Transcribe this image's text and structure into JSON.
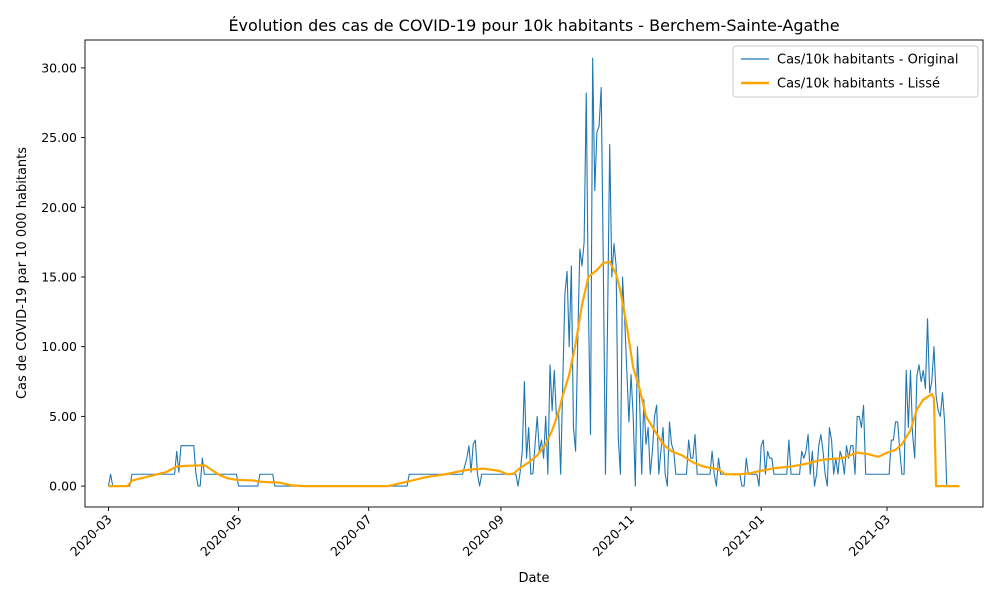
{
  "chart_data": {
    "type": "line",
    "title": "Évolution des cas de COVID-19 pour 10k habitants - Berchem-Sainte-Agathe",
    "xlabel": "Date",
    "ylabel": "Cas de COVID-19 par 10 000 habitants",
    "xlim": [
      "2020-02-19",
      "2021-04-15"
    ],
    "ylim": [
      -1.5,
      32.0
    ],
    "x_ticks": [
      "2020-03",
      "2020-05",
      "2020-07",
      "2020-09",
      "2020-11",
      "2021-01",
      "2021-03"
    ],
    "y_ticks": [
      "0.00",
      "5.00",
      "10.00",
      "15.00",
      "20.00",
      "25.00",
      "30.00"
    ],
    "grid": false,
    "legend_position": "top-right",
    "series": [
      {
        "name": "Cas/10k habitants - Original",
        "color": "#1f77b4",
        "points": [
          [
            "2020-03-01",
            0
          ],
          [
            "2020-03-02",
            0.85
          ],
          [
            "2020-03-03",
            0
          ],
          [
            "2020-03-11",
            0
          ],
          [
            "2020-03-12",
            0.85
          ],
          [
            "2020-04-01",
            0.85
          ],
          [
            "2020-04-02",
            2.5
          ],
          [
            "2020-04-03",
            1.0
          ],
          [
            "2020-04-04",
            2.9
          ],
          [
            "2020-04-10",
            2.9
          ],
          [
            "2020-04-11",
            0.9
          ],
          [
            "2020-04-12",
            0
          ],
          [
            "2020-04-13",
            0
          ],
          [
            "2020-04-14",
            2.0
          ],
          [
            "2020-04-15",
            0.85
          ],
          [
            "2020-04-30",
            0.85
          ],
          [
            "2020-05-01",
            0
          ],
          [
            "2020-05-10",
            0
          ],
          [
            "2020-05-11",
            0.85
          ],
          [
            "2020-05-17",
            0.85
          ],
          [
            "2020-05-18",
            0
          ],
          [
            "2020-07-19",
            0
          ],
          [
            "2020-07-20",
            0.85
          ],
          [
            "2020-08-14",
            0.85
          ],
          [
            "2020-08-16",
            2.0
          ],
          [
            "2020-08-17",
            2.9
          ],
          [
            "2020-08-18",
            1.0
          ],
          [
            "2020-08-19",
            3.0
          ],
          [
            "2020-08-20",
            3.3
          ],
          [
            "2020-08-21",
            0.85
          ],
          [
            "2020-08-22",
            0
          ],
          [
            "2020-08-23",
            0.85
          ],
          [
            "2020-09-08",
            0.85
          ],
          [
            "2020-09-09",
            0
          ],
          [
            "2020-09-10",
            1.0
          ],
          [
            "2020-09-11",
            2.5
          ],
          [
            "2020-09-12",
            7.5
          ],
          [
            "2020-09-13",
            2.0
          ],
          [
            "2020-09-14",
            4.2
          ],
          [
            "2020-09-15",
            0.85
          ],
          [
            "2020-09-16",
            0.9
          ],
          [
            "2020-09-17",
            3.0
          ],
          [
            "2020-09-18",
            5.0
          ],
          [
            "2020-09-19",
            2.5
          ],
          [
            "2020-09-20",
            3.3
          ],
          [
            "2020-09-21",
            2.0
          ],
          [
            "2020-09-22",
            5.0
          ],
          [
            "2020-09-23",
            0.85
          ],
          [
            "2020-09-24",
            8.7
          ],
          [
            "2020-09-25",
            5.4
          ],
          [
            "2020-09-26",
            8.3
          ],
          [
            "2020-09-27",
            5.0
          ],
          [
            "2020-09-28",
            5.4
          ],
          [
            "2020-09-29",
            0.85
          ],
          [
            "2020-09-30",
            7.5
          ],
          [
            "2020-10-01",
            13.8
          ],
          [
            "2020-10-02",
            15.4
          ],
          [
            "2020-10-03",
            10.0
          ],
          [
            "2020-10-04",
            15.8
          ],
          [
            "2020-10-05",
            4.2
          ],
          [
            "2020-10-06",
            2.5
          ],
          [
            "2020-10-07",
            10.4
          ],
          [
            "2020-10-08",
            17.0
          ],
          [
            "2020-10-09",
            15.8
          ],
          [
            "2020-10-10",
            17.5
          ],
          [
            "2020-10-11",
            28.2
          ],
          [
            "2020-10-12",
            13.0
          ],
          [
            "2020-10-13",
            3.7
          ],
          [
            "2020-10-14",
            30.7
          ],
          [
            "2020-10-15",
            21.2
          ],
          [
            "2020-10-16",
            25.4
          ],
          [
            "2020-10-17",
            25.8
          ],
          [
            "2020-10-18",
            28.6
          ],
          [
            "2020-10-19",
            15.8
          ],
          [
            "2020-10-20",
            0.85
          ],
          [
            "2020-10-21",
            12.0
          ],
          [
            "2020-10-22",
            24.5
          ],
          [
            "2020-10-23",
            15.0
          ],
          [
            "2020-10-24",
            17.4
          ],
          [
            "2020-10-25",
            15.8
          ],
          [
            "2020-10-26",
            3.5
          ],
          [
            "2020-10-27",
            0.85
          ],
          [
            "2020-10-28",
            15.0
          ],
          [
            "2020-10-29",
            12.0
          ],
          [
            "2020-10-30",
            8.3
          ],
          [
            "2020-10-31",
            4.6
          ],
          [
            "2020-11-01",
            8.0
          ],
          [
            "2020-11-02",
            5.0
          ],
          [
            "2020-11-03",
            0
          ],
          [
            "2020-11-04",
            10.0
          ],
          [
            "2020-11-05",
            6.2
          ],
          [
            "2020-11-06",
            0.85
          ],
          [
            "2020-11-07",
            6.2
          ],
          [
            "2020-11-08",
            3.0
          ],
          [
            "2020-11-09",
            4.2
          ],
          [
            "2020-11-10",
            0.85
          ],
          [
            "2020-11-11",
            2.5
          ],
          [
            "2020-11-12",
            5.0
          ],
          [
            "2020-11-13",
            5.8
          ],
          [
            "2020-11-14",
            0.85
          ],
          [
            "2020-11-15",
            2.5
          ],
          [
            "2020-11-16",
            4.2
          ],
          [
            "2020-11-17",
            0.85
          ],
          [
            "2020-11-18",
            0
          ],
          [
            "2020-11-19",
            4.6
          ],
          [
            "2020-11-20",
            3.0
          ],
          [
            "2020-11-21",
            2.5
          ],
          [
            "2020-11-22",
            0.85
          ],
          [
            "2020-11-27",
            0.85
          ],
          [
            "2020-11-28",
            3.3
          ],
          [
            "2020-11-29",
            2.0
          ],
          [
            "2020-11-30",
            2.0
          ],
          [
            "2020-12-01",
            3.7
          ],
          [
            "2020-12-02",
            0.85
          ],
          [
            "2020-12-08",
            0.85
          ],
          [
            "2020-12-09",
            2.5
          ],
          [
            "2020-12-10",
            0.85
          ],
          [
            "2020-12-11",
            0
          ],
          [
            "2020-12-12",
            2.0
          ],
          [
            "2020-12-13",
            0.85
          ],
          [
            "2020-12-22",
            0.85
          ],
          [
            "2020-12-23",
            0
          ],
          [
            "2020-12-24",
            0
          ],
          [
            "2020-12-25",
            2.0
          ],
          [
            "2020-12-26",
            0.85
          ],
          [
            "2020-12-30",
            0.85
          ],
          [
            "2020-12-31",
            0
          ],
          [
            "2021-01-01",
            2.9
          ],
          [
            "2021-01-02",
            3.3
          ],
          [
            "2021-01-03",
            0.85
          ],
          [
            "2021-01-04",
            2.5
          ],
          [
            "2021-01-05",
            2.0
          ],
          [
            "2021-01-06",
            2.0
          ],
          [
            "2021-01-07",
            0.85
          ],
          [
            "2021-01-13",
            0.85
          ],
          [
            "2021-01-14",
            3.3
          ],
          [
            "2021-01-15",
            0.85
          ],
          [
            "2021-01-19",
            0.85
          ],
          [
            "2021-01-20",
            2.5
          ],
          [
            "2021-01-21",
            2.0
          ],
          [
            "2021-01-22",
            2.5
          ],
          [
            "2021-01-23",
            3.7
          ],
          [
            "2021-01-24",
            0.85
          ],
          [
            "2021-01-25",
            2.5
          ],
          [
            "2021-01-26",
            0
          ],
          [
            "2021-01-27",
            0.85
          ],
          [
            "2021-01-28",
            2.9
          ],
          [
            "2021-01-29",
            3.7
          ],
          [
            "2021-01-30",
            2.5
          ],
          [
            "2021-01-31",
            0.85
          ],
          [
            "2021-02-01",
            0
          ],
          [
            "2021-02-02",
            4.2
          ],
          [
            "2021-02-03",
            3.3
          ],
          [
            "2021-02-04",
            0.85
          ],
          [
            "2021-02-05",
            2.0
          ],
          [
            "2021-02-06",
            0.85
          ],
          [
            "2021-02-07",
            2.5
          ],
          [
            "2021-02-08",
            2.0
          ],
          [
            "2021-02-09",
            0.85
          ],
          [
            "2021-02-10",
            2.9
          ],
          [
            "2021-02-11",
            2.0
          ],
          [
            "2021-02-12",
            2.9
          ],
          [
            "2021-02-13",
            2.9
          ],
          [
            "2021-02-14",
            0.85
          ],
          [
            "2021-02-15",
            5.0
          ],
          [
            "2021-02-16",
            5.0
          ],
          [
            "2021-02-17",
            4.2
          ],
          [
            "2021-02-18",
            5.8
          ],
          [
            "2021-02-19",
            0.85
          ],
          [
            "2021-03-02",
            0.85
          ],
          [
            "2021-03-03",
            3.3
          ],
          [
            "2021-03-04",
            3.3
          ],
          [
            "2021-03-05",
            4.6
          ],
          [
            "2021-03-06",
            4.6
          ],
          [
            "2021-03-07",
            2.5
          ],
          [
            "2021-03-08",
            0.85
          ],
          [
            "2021-03-09",
            0.85
          ],
          [
            "2021-03-10",
            8.3
          ],
          [
            "2021-03-11",
            4.2
          ],
          [
            "2021-03-12",
            8.3
          ],
          [
            "2021-03-13",
            3.7
          ],
          [
            "2021-03-14",
            2.0
          ],
          [
            "2021-03-15",
            7.9
          ],
          [
            "2021-03-16",
            8.7
          ],
          [
            "2021-03-17",
            7.5
          ],
          [
            "2021-03-18",
            8.3
          ],
          [
            "2021-03-19",
            7.0
          ],
          [
            "2021-03-20",
            12.0
          ],
          [
            "2021-03-21",
            6.7
          ],
          [
            "2021-03-22",
            7.5
          ],
          [
            "2021-03-23",
            10.0
          ],
          [
            "2021-03-24",
            6.5
          ],
          [
            "2021-03-25",
            5.4
          ],
          [
            "2021-03-26",
            5.0
          ],
          [
            "2021-03-27",
            6.7
          ],
          [
            "2021-03-28",
            4.6
          ],
          [
            "2021-03-29",
            0
          ]
        ]
      },
      {
        "name": "Cas/10k habitants - Lissé",
        "color": "#ffa500",
        "points": [
          [
            "2020-03-01",
            0
          ],
          [
            "2020-03-10",
            0
          ],
          [
            "2020-03-12",
            0.4
          ],
          [
            "2020-03-20",
            0.7
          ],
          [
            "2020-03-28",
            1.0
          ],
          [
            "2020-04-02",
            1.4
          ],
          [
            "2020-04-06",
            1.45
          ],
          [
            "2020-04-15",
            1.5
          ],
          [
            "2020-04-18",
            1.2
          ],
          [
            "2020-04-22",
            0.8
          ],
          [
            "2020-04-26",
            0.55
          ],
          [
            "2020-04-30",
            0.45
          ],
          [
            "2020-05-08",
            0.4
          ],
          [
            "2020-05-12",
            0.3
          ],
          [
            "2020-05-20",
            0.25
          ],
          [
            "2020-05-26",
            0.05
          ],
          [
            "2020-06-01",
            0
          ],
          [
            "2020-07-10",
            0
          ],
          [
            "2020-07-20",
            0.35
          ],
          [
            "2020-07-28",
            0.65
          ],
          [
            "2020-08-06",
            0.85
          ],
          [
            "2020-08-14",
            1.1
          ],
          [
            "2020-08-18",
            1.2
          ],
          [
            "2020-08-24",
            1.25
          ],
          [
            "2020-08-31",
            1.1
          ],
          [
            "2020-09-04",
            0.85
          ],
          [
            "2020-09-07",
            0.9
          ],
          [
            "2020-09-10",
            1.3
          ],
          [
            "2020-09-14",
            1.7
          ],
          [
            "2020-09-18",
            2.2
          ],
          [
            "2020-09-22",
            3.0
          ],
          [
            "2020-09-25",
            4.0
          ],
          [
            "2020-09-28",
            5.3
          ],
          [
            "2020-09-30",
            6.5
          ],
          [
            "2020-10-03",
            8.0
          ],
          [
            "2020-10-06",
            10.2
          ],
          [
            "2020-10-09",
            13.0
          ],
          [
            "2020-10-12",
            15.0
          ],
          [
            "2020-10-16",
            15.5
          ],
          [
            "2020-10-19",
            16.0
          ],
          [
            "2020-10-22",
            16.1
          ],
          [
            "2020-10-25",
            15.2
          ],
          [
            "2020-10-27",
            14.0
          ],
          [
            "2020-10-30",
            11.5
          ],
          [
            "2020-11-02",
            8.5
          ],
          [
            "2020-11-05",
            7.0
          ],
          [
            "2020-11-08",
            5.0
          ],
          [
            "2020-11-12",
            4.0
          ],
          [
            "2020-11-16",
            3.0
          ],
          [
            "2020-11-20",
            2.5
          ],
          [
            "2020-11-25",
            2.2
          ],
          [
            "2020-11-30",
            1.7
          ],
          [
            "2020-12-05",
            1.4
          ],
          [
            "2020-12-12",
            1.2
          ],
          [
            "2020-12-15",
            0.85
          ],
          [
            "2020-12-22",
            0.85
          ],
          [
            "2020-12-26",
            0.9
          ],
          [
            "2021-01-01",
            1.1
          ],
          [
            "2021-01-08",
            1.3
          ],
          [
            "2021-01-15",
            1.4
          ],
          [
            "2021-01-22",
            1.6
          ],
          [
            "2021-01-30",
            1.9
          ],
          [
            "2021-02-08",
            2.0
          ],
          [
            "2021-02-15",
            2.4
          ],
          [
            "2021-02-20",
            2.3
          ],
          [
            "2021-02-25",
            2.1
          ],
          [
            "2021-03-01",
            2.4
          ],
          [
            "2021-03-05",
            2.6
          ],
          [
            "2021-03-08",
            3.0
          ],
          [
            "2021-03-12",
            4.0
          ],
          [
            "2021-03-15",
            5.5
          ],
          [
            "2021-03-18",
            6.2
          ],
          [
            "2021-03-22",
            6.6
          ],
          [
            "2021-03-23",
            6.3
          ],
          [
            "2021-03-24",
            0
          ],
          [
            "2021-04-04",
            0
          ]
        ]
      }
    ]
  }
}
